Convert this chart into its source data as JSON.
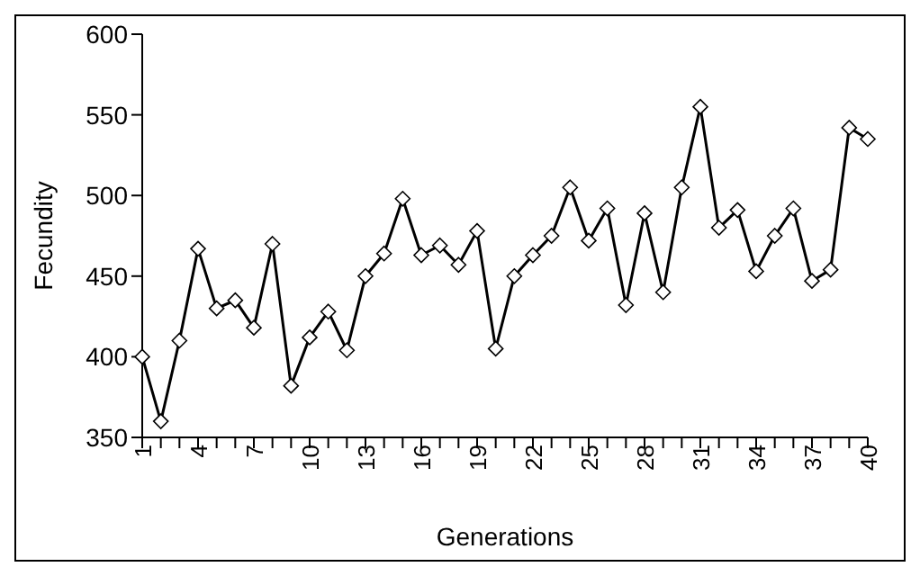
{
  "chart_data": {
    "type": "line",
    "xlabel": "Generations",
    "ylabel": "Fecundity",
    "categories": [
      "1",
      null,
      null,
      "4",
      null,
      null,
      "7",
      null,
      null,
      "10",
      null,
      null,
      "13",
      null,
      null,
      "16",
      null,
      null,
      "19",
      null,
      null,
      "22",
      null,
      null,
      "25",
      null,
      null,
      "28",
      null,
      null,
      "31",
      null,
      null,
      "34",
      null,
      null,
      "37",
      null,
      null,
      "40"
    ],
    "series": [
      {
        "color": "#000000",
        "values": [
          400,
          360,
          410,
          467,
          430,
          435,
          418,
          470,
          382,
          412,
          428,
          404,
          450,
          464,
          498,
          463,
          469,
          457,
          478,
          405,
          450,
          463,
          475,
          505,
          472,
          492,
          432,
          489,
          440,
          505,
          555,
          480,
          491,
          453,
          475,
          492,
          447,
          454,
          542,
          535
        ]
      }
    ],
    "ylim": [
      350,
      600
    ],
    "yticks": [
      350,
      400,
      450,
      500,
      550,
      600
    ],
    "grid": false,
    "legend": false,
    "marker": "diamond",
    "line_style": "solid"
  }
}
